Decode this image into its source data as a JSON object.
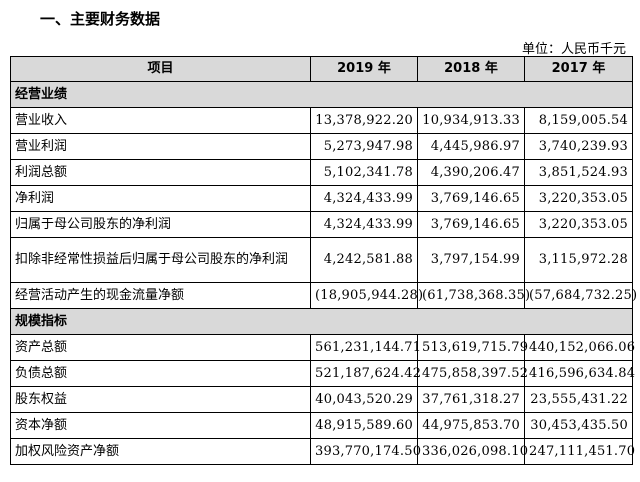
{
  "heading": "一、主要财务数据",
  "unit": "单位：人民币千元",
  "table": {
    "headers": [
      "项目",
      "2019 年",
      "2018 年",
      "2017 年"
    ],
    "sections": [
      {
        "title": "经营业绩",
        "rows": [
          {
            "label": "营业收入",
            "v2019": "13,378,922.20",
            "v2018": "10,934,913.33",
            "v2017": "8,159,005.54"
          },
          {
            "label": "营业利润",
            "v2019": "5,273,947.98",
            "v2018": "4,445,986.97",
            "v2017": "3,740,239.93"
          },
          {
            "label": "利润总额",
            "v2019": "5,102,341.78",
            "v2018": "4,390,206.47",
            "v2017": "3,851,524.93"
          },
          {
            "label": "净利润",
            "v2019": "4,324,433.99",
            "v2018": "3,769,146.65",
            "v2017": "3,220,353.05"
          },
          {
            "label": "归属于母公司股东的净利润",
            "v2019": "4,324,433.99",
            "v2018": "3,769,146.65",
            "v2017": "3,220,353.05"
          },
          {
            "label": "扣除非经常性损益后归属于母公司股东的净利润",
            "v2019": "4,242,581.88",
            "v2018": "3,797,154.99",
            "v2017": "3,115,972.28"
          },
          {
            "label": "经营活动产生的现金流量净额",
            "v2019": "(18,905,944.28)",
            "v2018": "(61,738,368.35)",
            "v2017": "(57,684,732.25)"
          }
        ]
      },
      {
        "title": "规模指标",
        "rows": [
          {
            "label": "资产总额",
            "v2019": "561,231,144.71",
            "v2018": "513,619,715.79",
            "v2017": "440,152,066.06"
          },
          {
            "label": "负债总额",
            "v2019": "521,187,624.42",
            "v2018": "475,858,397.52",
            "v2017": "416,596,634.84"
          },
          {
            "label": "股东权益",
            "v2019": "40,043,520.29",
            "v2018": "37,761,318.27",
            "v2017": "23,555,431.22"
          },
          {
            "label": "资本净额",
            "v2019": "48,915,589.60",
            "v2018": "44,975,853.70",
            "v2017": "30,453,435.50"
          },
          {
            "label": "加权风险资产净额",
            "v2019": "393,770,174.50",
            "v2018": "336,026,098.10",
            "v2017": "247,111,451.70"
          }
        ]
      }
    ]
  }
}
